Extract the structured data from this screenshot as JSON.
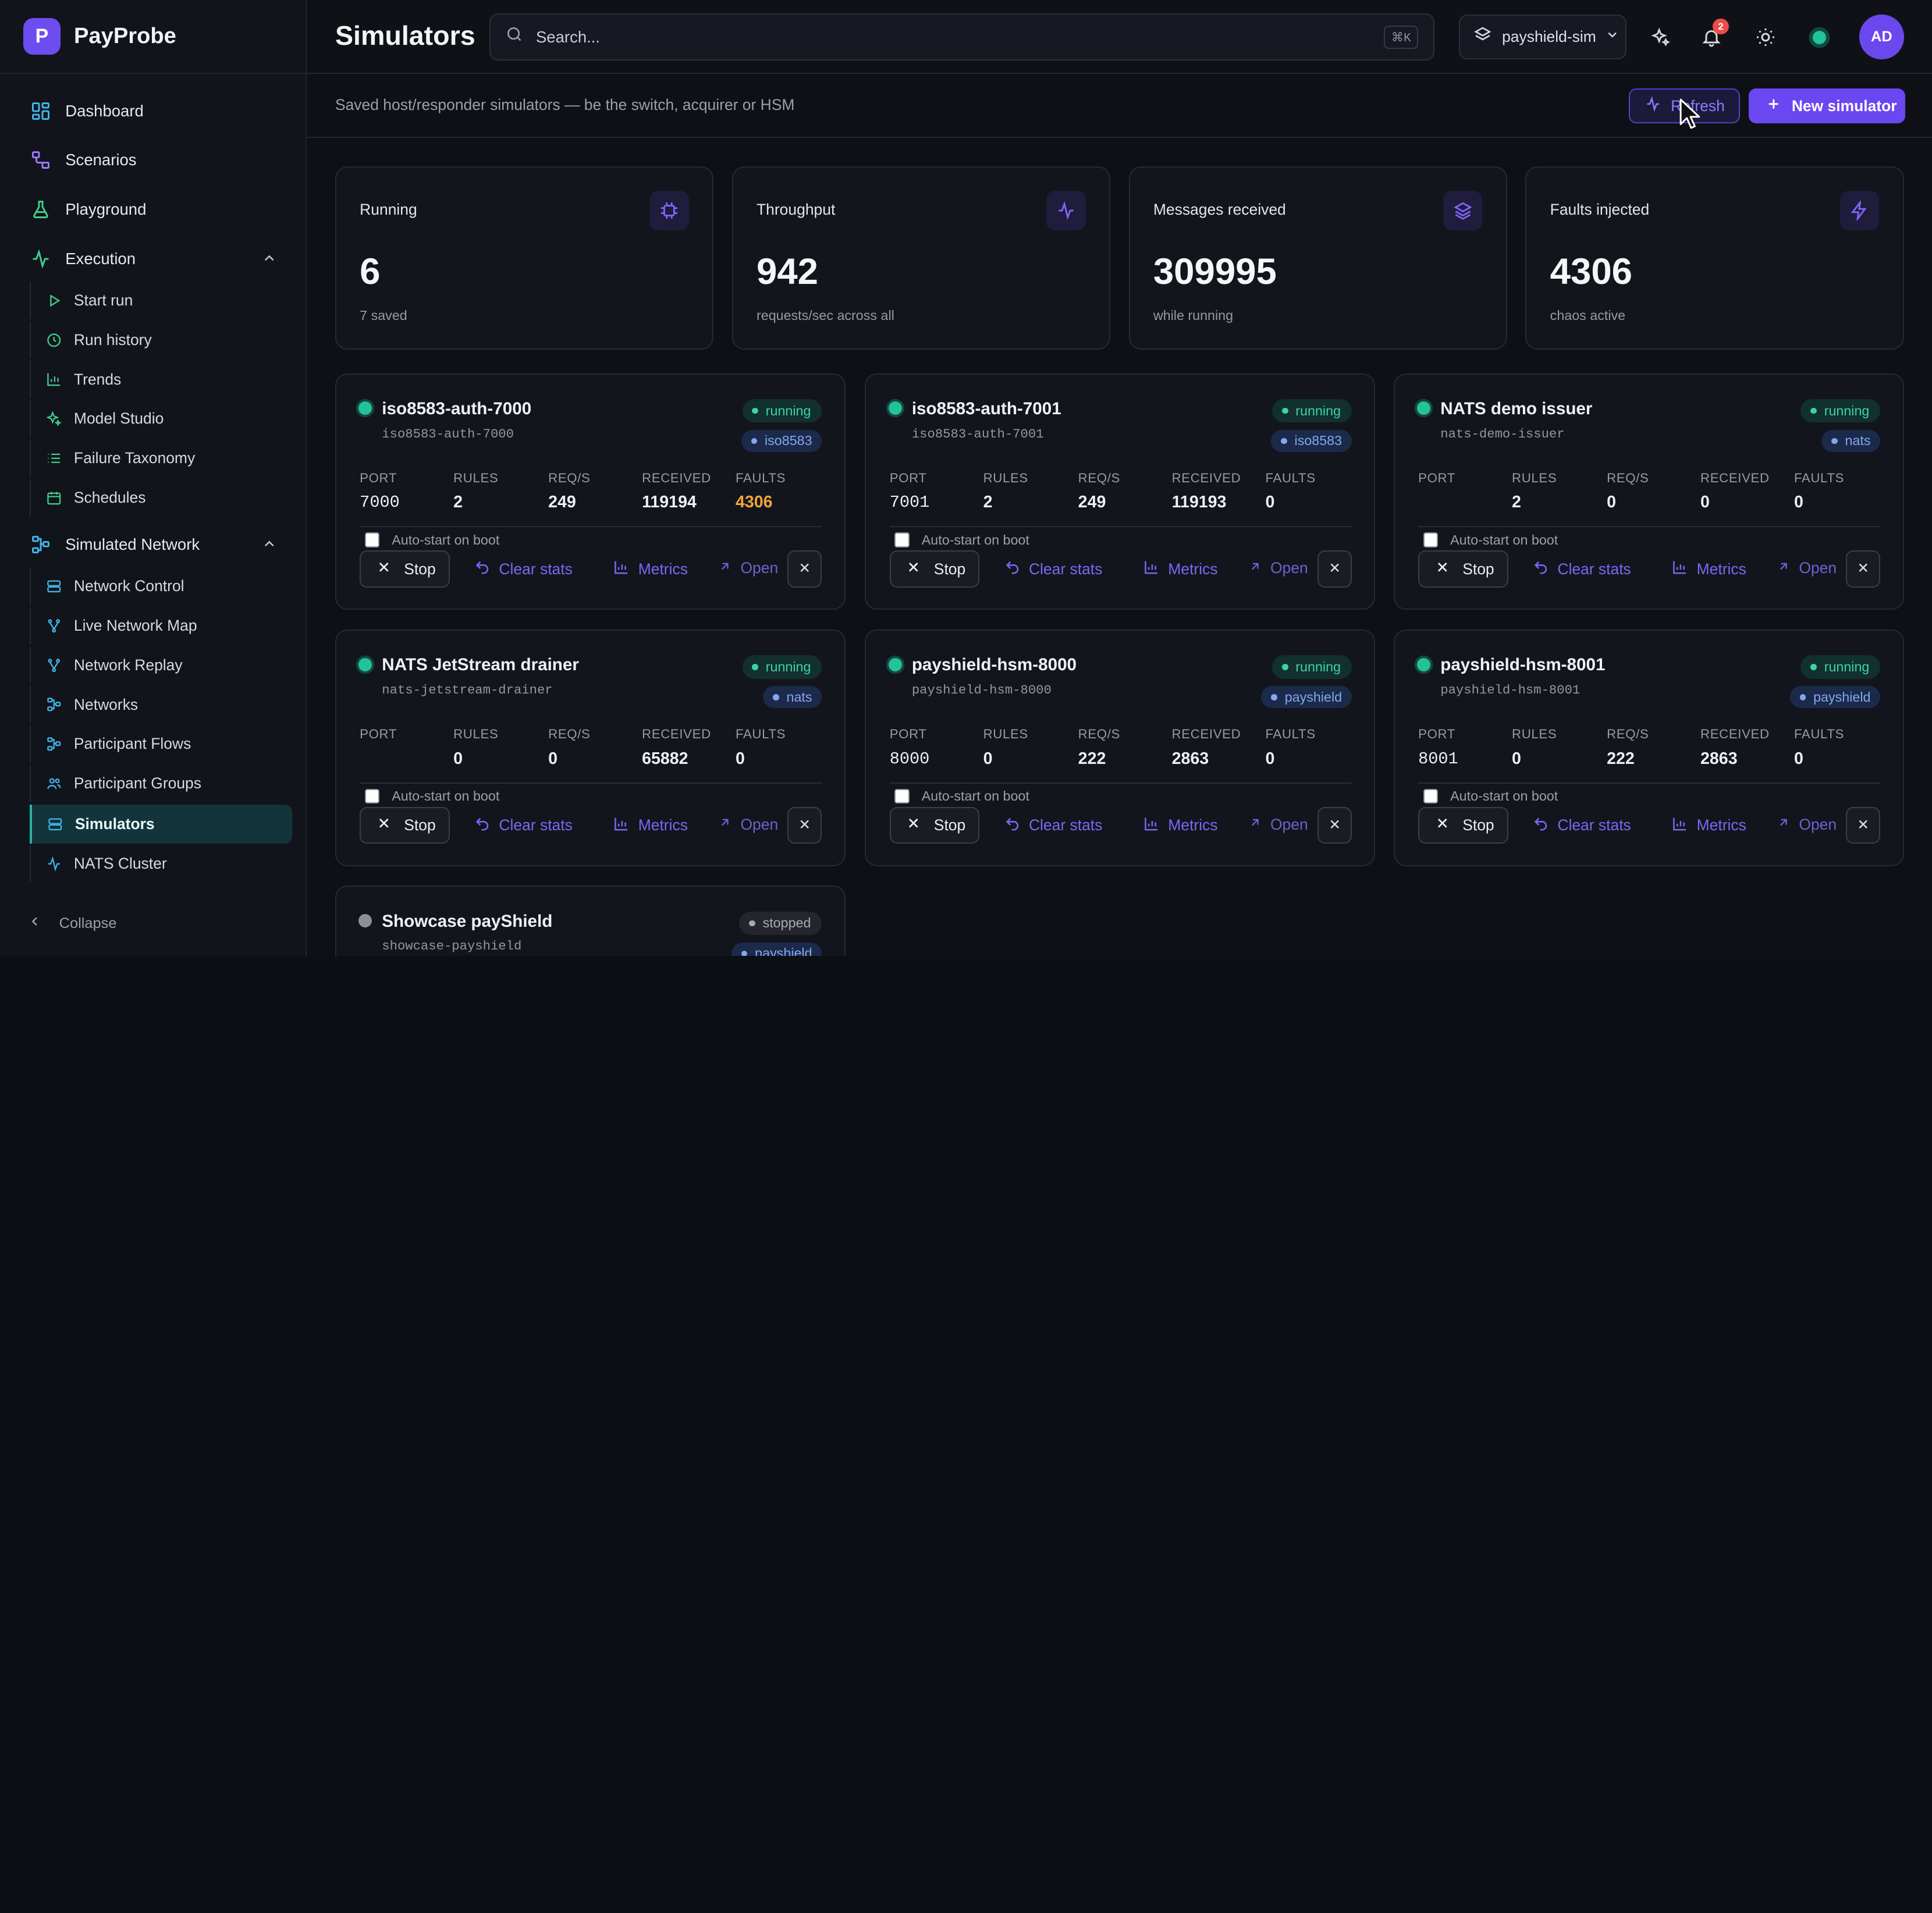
{
  "app": {
    "name": "PayProbe",
    "logo_letter": "P"
  },
  "sidebar": {
    "dashboard": "Dashboard",
    "scenarios": "Scenarios",
    "playground": "Playground",
    "execution": {
      "label": "Execution",
      "items": [
        "Start run",
        "Run history",
        "Trends",
        "Model Studio",
        "Failure Taxonomy",
        "Schedules"
      ]
    },
    "simulated_network": {
      "label": "Simulated Network",
      "items": [
        "Network Control",
        "Live Network Map",
        "Network Replay",
        "Networks",
        "Participant Flows",
        "Participant Groups",
        "Simulators",
        "NATS Cluster"
      ],
      "active": "Simulators"
    },
    "collapse": "Collapse"
  },
  "header": {
    "title": "Simulators",
    "search_placeholder": "Search...",
    "search_shortcut": "⌘K",
    "environment": "payshield-sim",
    "notification_count": "2",
    "avatar_initials": "AD"
  },
  "subheader": {
    "description": "Saved host/responder simulators — be the switch, acquirer or HSM",
    "refresh_label": "Refresh",
    "new_label": "New simulator"
  },
  "stats": [
    {
      "label": "Running",
      "value": "6",
      "sub": "7 saved",
      "icon": "cpu-icon"
    },
    {
      "label": "Throughput",
      "value": "942",
      "sub": "requests/sec across all",
      "icon": "activity-icon"
    },
    {
      "label": "Messages received",
      "value": "309995",
      "sub": "while running",
      "icon": "layers-icon"
    },
    {
      "label": "Faults injected",
      "value": "4306",
      "sub": "chaos active",
      "icon": "zap-icon"
    }
  ],
  "card_labels": {
    "port": "PORT",
    "rules": "RULES",
    "reqs": "REQ/S",
    "received": "RECEIVED",
    "faults": "FAULTS",
    "autostart": "Auto-start on boot",
    "stop": "Stop",
    "clear": "Clear stats",
    "metrics": "Metrics",
    "open": "Open"
  },
  "simulators": [
    {
      "name": "iso8583-auth-7000",
      "slug": "iso8583-auth-7000",
      "state": "running",
      "protocol": "iso8583",
      "port": "7000",
      "rules": "2",
      "reqs": "249",
      "received": "119194",
      "faults": "4306"
    },
    {
      "name": "iso8583-auth-7001",
      "slug": "iso8583-auth-7001",
      "state": "running",
      "protocol": "iso8583",
      "port": "7001",
      "rules": "2",
      "reqs": "249",
      "received": "119193",
      "faults": "0"
    },
    {
      "name": "NATS demo issuer",
      "slug": "nats-demo-issuer",
      "state": "running",
      "protocol": "nats",
      "port": "",
      "rules": "2",
      "reqs": "0",
      "received": "0",
      "faults": "0"
    },
    {
      "name": "NATS JetStream drainer",
      "slug": "nats-jetstream-drainer",
      "state": "running",
      "protocol": "nats",
      "port": "",
      "rules": "0",
      "reqs": "0",
      "received": "65882",
      "faults": "0"
    },
    {
      "name": "payshield-hsm-8000",
      "slug": "payshield-hsm-8000",
      "state": "running",
      "protocol": "payshield",
      "port": "8000",
      "rules": "0",
      "reqs": "222",
      "received": "2863",
      "faults": "0"
    },
    {
      "name": "payshield-hsm-8001",
      "slug": "payshield-hsm-8001",
      "state": "running",
      "protocol": "payshield",
      "port": "8001",
      "rules": "0",
      "reqs": "222",
      "received": "2863",
      "faults": "0"
    },
    {
      "name": "Showcase payShield",
      "slug": "showcase-payshield",
      "state": "stopped",
      "protocol": "payshield"
    }
  ],
  "colors": {
    "accent": "#6a47f0",
    "running": "#22c39a",
    "warning": "#f0a53a",
    "active_nav": "#12343a"
  }
}
